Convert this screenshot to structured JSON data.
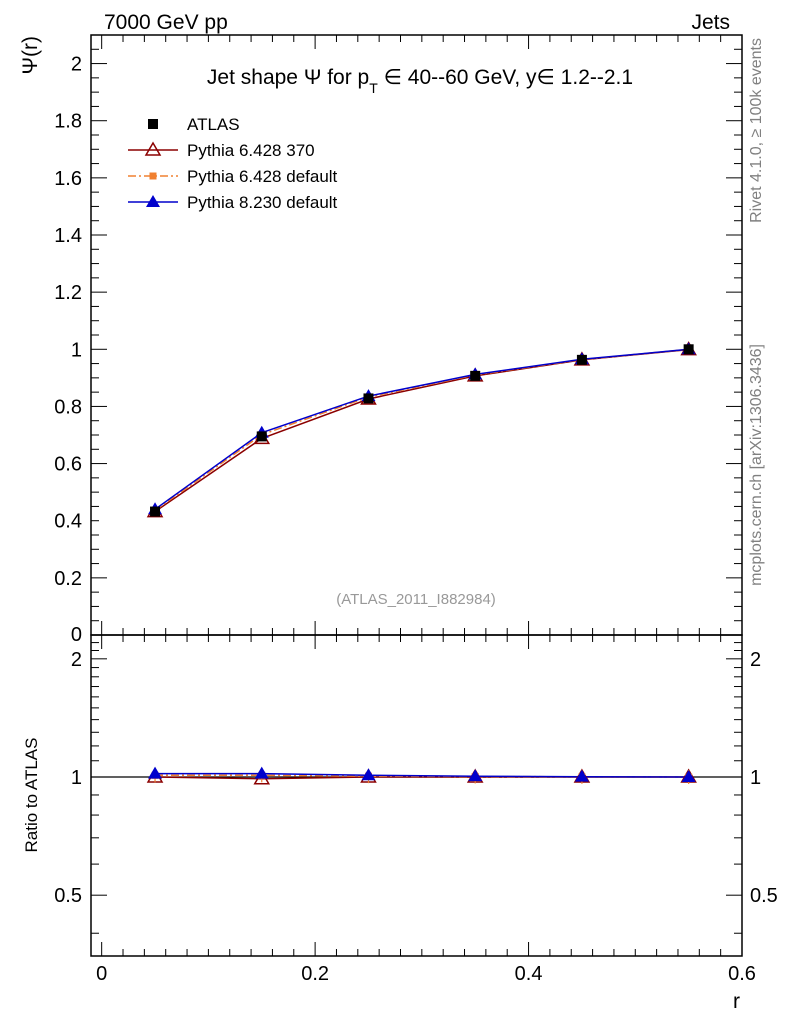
{
  "header": {
    "left": "7000 GeV pp",
    "right": "Jets"
  },
  "side_labels": {
    "rivet": "Rivet 4.1.0, ≥ 100k events",
    "mcplots": "mcplots.cern.ch [arXiv:1306.3436]"
  },
  "watermark": "(ATLAS_2011_I882984)",
  "chart_data": [
    {
      "type": "line",
      "panel": "main",
      "title": "Jet shape Ψ for p_T ∈ 40--60 GeV, y∈ 1.2--2.1",
      "title_parts": {
        "prefix": "Jet shape Ψ for p",
        "sub": "T",
        "suffix": " ∈ 40--60 GeV, y∈ 1.2--2.1"
      },
      "xlabel": "r",
      "ylabel": "Ψ(r)",
      "xlim": [
        -0.01,
        0.6
      ],
      "ylim": [
        0,
        2.1
      ],
      "x_ticks": [
        "0",
        "0.2",
        "0.4",
        "0.6"
      ],
      "x_tick_values": [
        0,
        0.2,
        0.4,
        0.6
      ],
      "y_ticks": [
        "0.2",
        "0.4",
        "0.6",
        "0.8",
        "1",
        "1.2",
        "1.4",
        "1.6",
        "1.8",
        "2"
      ],
      "y_tick_values": [
        0.2,
        0.4,
        0.6,
        0.8,
        1.0,
        1.2,
        1.4,
        1.6,
        1.8,
        2.0
      ],
      "y_zero_label": "0",
      "x": [
        0.05,
        0.15,
        0.25,
        0.35,
        0.45,
        0.55
      ],
      "legend": "top-left",
      "series": [
        {
          "name": "ATLAS",
          "color": "#000000",
          "marker": "square-filled",
          "line": "none",
          "values": [
            0.432,
            0.695,
            0.828,
            0.907,
            0.963,
            1.0
          ]
        },
        {
          "name": "Pythia 6.428 370",
          "color": "#8b0000",
          "marker": "triangle-open",
          "line": "solid",
          "values": [
            0.432,
            0.688,
            0.826,
            0.907,
            0.963,
            0.999
          ]
        },
        {
          "name": "Pythia 6.428 default",
          "color": "#f08030",
          "marker": "square-small",
          "line": "dashdot",
          "values": [
            0.436,
            0.701,
            0.833,
            0.91,
            0.964,
            1.0
          ]
        },
        {
          "name": "Pythia 8.230 default",
          "color": "#0000cc",
          "marker": "triangle-filled",
          "line": "solid",
          "values": [
            0.44,
            0.708,
            0.836,
            0.912,
            0.965,
            1.0
          ]
        }
      ]
    },
    {
      "type": "line",
      "panel": "ratio",
      "xlabel": "r",
      "ylabel": "Ratio to ATLAS",
      "xlim": [
        -0.01,
        0.6
      ],
      "ylim": [
        0.35,
        2.3
      ],
      "y_ticks": [
        "0.5",
        "1",
        "2"
      ],
      "y_tick_values": [
        0.5,
        1.0,
        2.0
      ],
      "x": [
        0.05,
        0.15,
        0.25,
        0.35,
        0.45,
        0.55
      ],
      "series": [
        {
          "name": "Pythia 6.428 370",
          "values": [
            1.0,
            0.99,
            1.0,
            1.0,
            1.0,
            1.0
          ]
        },
        {
          "name": "Pythia 6.428 default",
          "values": [
            1.01,
            1.01,
            1.005,
            1.003,
            1.001,
            1.0
          ]
        },
        {
          "name": "Pythia 8.230 default",
          "values": [
            1.02,
            1.02,
            1.01,
            1.005,
            1.002,
            1.0
          ]
        }
      ]
    }
  ]
}
